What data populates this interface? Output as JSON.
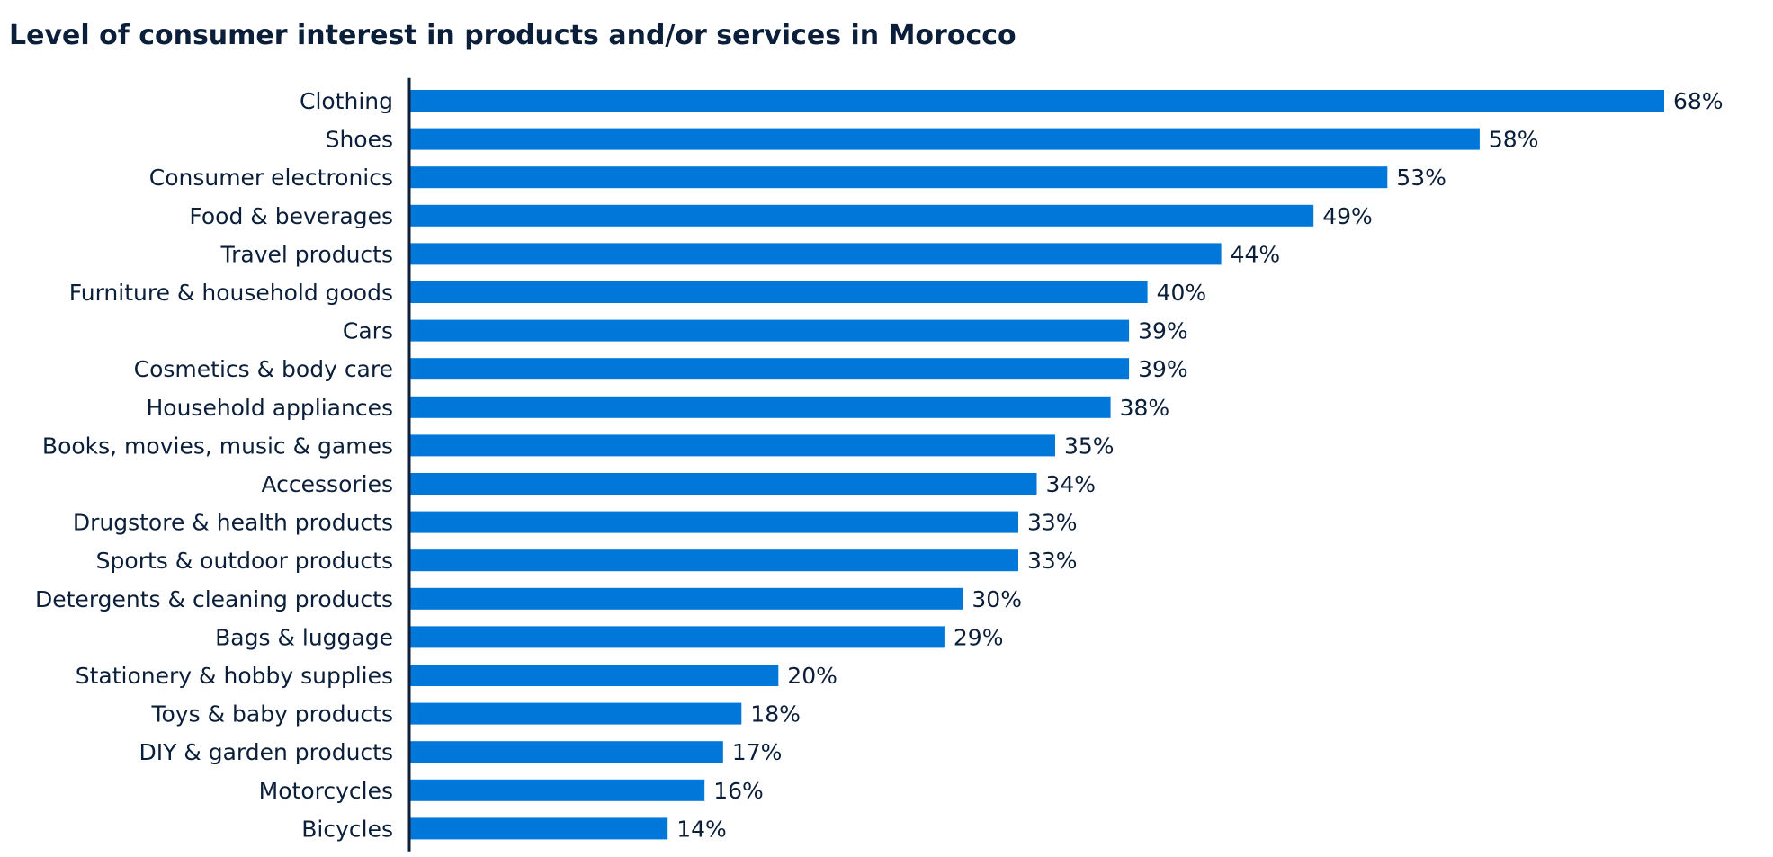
{
  "chart_data": {
    "type": "bar",
    "orientation": "horizontal",
    "title": "Level of consumer interest in products and/or services in Morocco",
    "categories": [
      "Clothing",
      "Shoes",
      "Consumer electronics",
      "Food & beverages",
      "Travel products",
      "Furniture & household goods",
      "Cars",
      "Cosmetics & body care",
      "Household appliances",
      "Books, movies, music & games",
      "Accessories",
      "Drugstore & health products",
      "Sports & outdoor products",
      "Detergents & cleaning products",
      "Bags & luggage",
      "Stationery & hobby supplies",
      "Toys & baby products",
      "DIY & garden products",
      "Motorcycles",
      "Bicycles"
    ],
    "values": [
      68,
      58,
      53,
      49,
      44,
      40,
      39,
      39,
      38,
      35,
      34,
      33,
      33,
      30,
      29,
      20,
      18,
      17,
      16,
      14
    ],
    "value_labels": [
      "68%",
      "58%",
      "53%",
      "49%",
      "44%",
      "40%",
      "39%",
      "39%",
      "38%",
      "35%",
      "34%",
      "33%",
      "33%",
      "30%",
      "29%",
      "20%",
      "18%",
      "17%",
      "16%",
      "14%"
    ],
    "xlim": [
      0,
      68
    ],
    "grid": false,
    "legend": "none",
    "colors": {
      "bar": "#0077d9",
      "text": "#0b1f3a",
      "axis": "#0b1f3a"
    }
  }
}
